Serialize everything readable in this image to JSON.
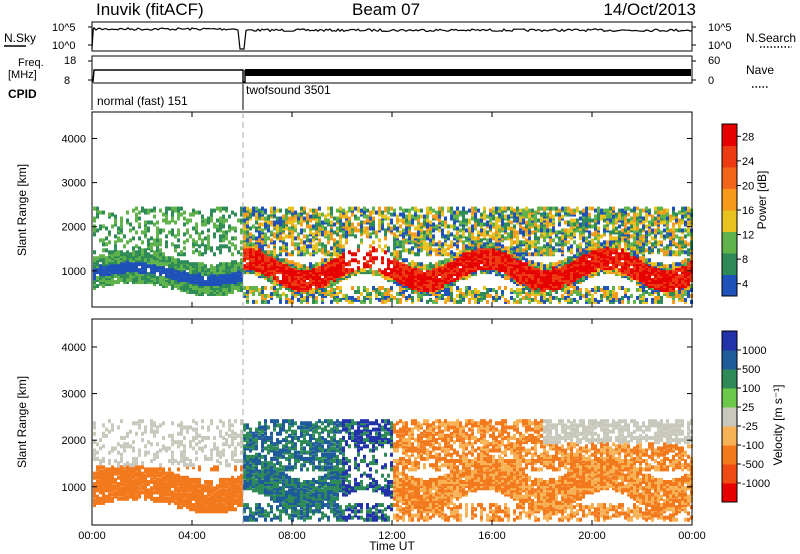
{
  "header": {
    "station": "Inuvik (fitACF)",
    "beam": "Beam 07",
    "date": "14/Oct/2013"
  },
  "labels": {
    "nsky": "N.Sky",
    "freq": "Freq.",
    "freq_unit": "[MHz]",
    "cpid": "CPID",
    "nsearch": "N.Search",
    "nave": "Nave",
    "x_title": "Time UT",
    "y_title": "Slant Range [km]"
  },
  "noise_panel": {
    "left_ticks": [
      "10^5",
      "10^0"
    ],
    "right_ticks": [
      "10^5",
      "10^0"
    ]
  },
  "freq_panel": {
    "left_ticks": [
      "18",
      "8"
    ],
    "right_ticks": [
      "60",
      "0"
    ]
  },
  "cpid_segments": [
    "normal (fast) 151",
    "twofsound 3501"
  ],
  "colors": {
    "power": [
      "#0000ff",
      "#1f52b8",
      "#2e8b57",
      "#5fb34a",
      "#e8c21f",
      "#f59a1a",
      "#f2661b",
      "#ec3a12",
      "#e60000"
    ],
    "velocity": [
      "#e60000",
      "#ef4a14",
      "#f27a1d",
      "#f7b255",
      "#c8c8bc",
      "#6cc84a",
      "#2e8b57",
      "#1f5a9a",
      "#2233aa"
    ],
    "trace": "#000000"
  },
  "chart_data": [
    {
      "type": "heatmap",
      "panel": "power",
      "xlabel": "",
      "ylabel": "Slant Range [km]",
      "x_ticks": [
        "00:00",
        "04:00",
        "08:00",
        "12:00",
        "16:00",
        "20:00",
        "00:00"
      ],
      "x_range_hours": [
        0,
        24
      ],
      "y_ticks": [
        1000,
        2000,
        3000,
        4000
      ],
      "ylim": [
        180,
        4600
      ],
      "colorbar": {
        "label": "Power [dB]",
        "ticks": [
          4,
          8,
          12,
          16,
          20,
          24,
          28
        ],
        "range": [
          0,
          30
        ]
      },
      "mode_change_hour": 6.0
    },
    {
      "type": "heatmap",
      "panel": "velocity",
      "xlabel": "Time UT",
      "ylabel": "Slant Range [km]",
      "x_ticks": [
        "00:00",
        "04:00",
        "08:00",
        "12:00",
        "16:00",
        "20:00",
        "00:00"
      ],
      "x_range_hours": [
        0,
        24
      ],
      "y_ticks": [
        1000,
        2000,
        3000,
        4000
      ],
      "ylim": [
        180,
        4600
      ],
      "colorbar": {
        "label": "Velocity [m s⁻¹]",
        "ticks": [
          1000,
          500,
          100,
          25,
          -25,
          -100,
          -500,
          -1000
        ]
      },
      "mode_change_hour": 6.0
    }
  ]
}
